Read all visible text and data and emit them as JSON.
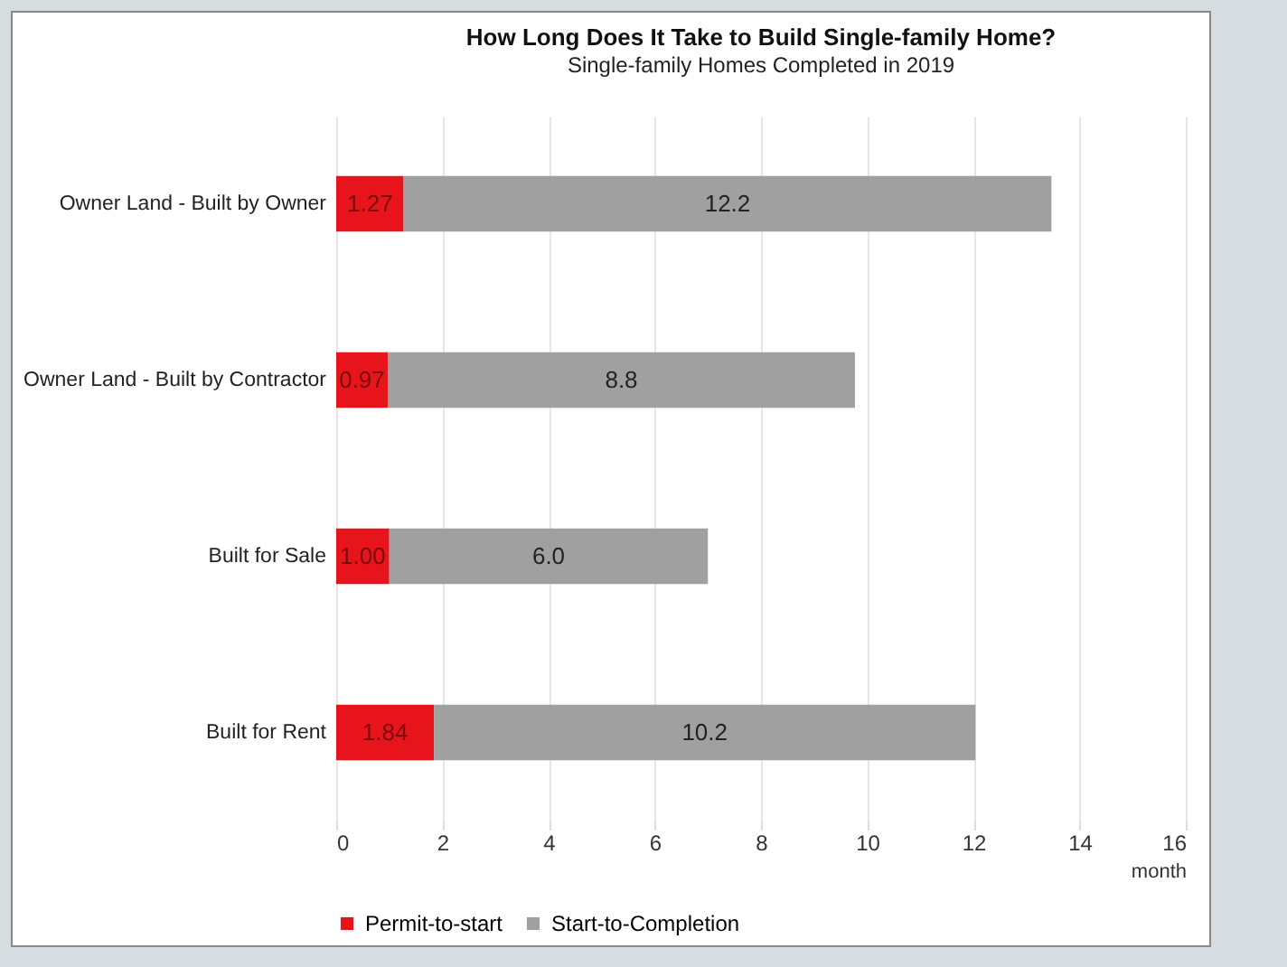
{
  "chart_data": {
    "type": "bar",
    "orientation": "horizontal",
    "stacked": true,
    "title": "How Long Does It Take to Build Single-family Home?",
    "subtitle": "Single-family Homes Completed in 2019",
    "xlabel": "month",
    "categories": [
      "Owner Land - Built by Owner",
      "Owner Land - Built by Contractor",
      "Built for Sale",
      "Built for Rent"
    ],
    "series": [
      {
        "name": "Permit-to-start",
        "color": "#e8141c",
        "values": [
          1.27,
          0.97,
          1.0,
          1.84
        ],
        "value_labels": [
          "1.27",
          "0.97",
          "1.00",
          "1.84"
        ]
      },
      {
        "name": "Start-to-Completion",
        "color": "#a0a0a0",
        "values": [
          12.2,
          8.8,
          6.0,
          10.2
        ],
        "value_labels": [
          "12.2",
          "8.8",
          "6.0",
          "10.2"
        ]
      }
    ],
    "xlim": [
      0,
      16
    ],
    "xticks": [
      0,
      2,
      4,
      6,
      8,
      10,
      12,
      14,
      16
    ],
    "grid": "x",
    "legend": "bottom"
  }
}
